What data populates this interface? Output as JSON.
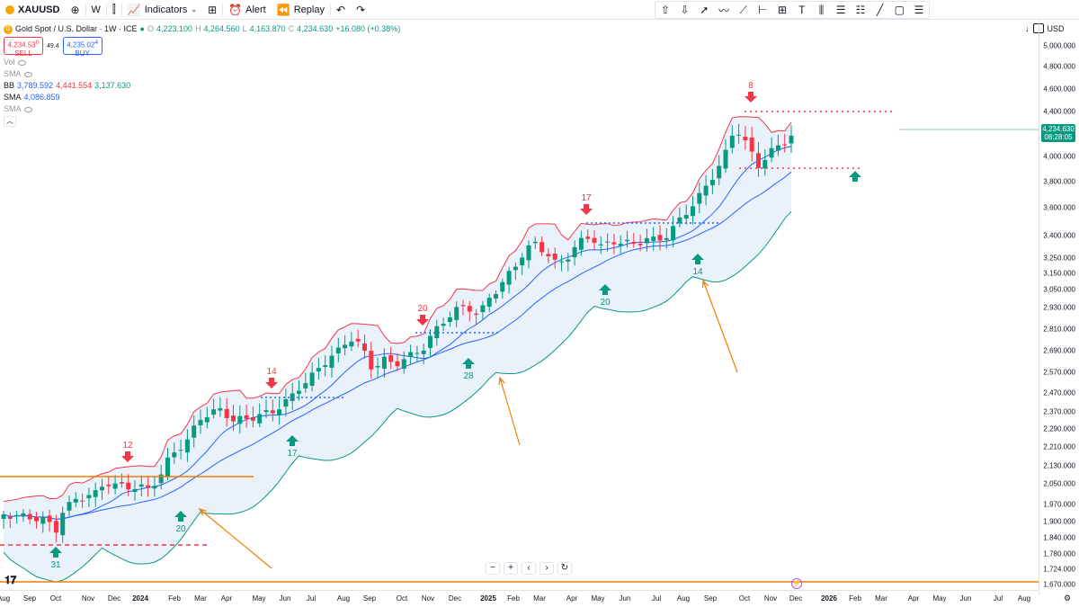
{
  "toolbar": {
    "symbol": "XAUUSD",
    "interval": "W",
    "indicators_label": "Indicators",
    "alert_label": "Alert",
    "replay_label": "Replay"
  },
  "legend": {
    "title": "Gold Spot / U.S. Dollar · 1W · ICE",
    "open_label": "O",
    "open": "4,223.100",
    "high_label": "H",
    "high": "4,264.560",
    "low_label": "L",
    "low": "4,163.870",
    "close_label": "C",
    "close": "4,234.630",
    "change": "+16.080 (+0.38%)",
    "sell_price": "4,234.53",
    "sell_sup": "0",
    "sell_label": "SELL",
    "spread": "49.4",
    "buy_price": "4,235.02",
    "buy_sup": "4",
    "buy_label": "BUY",
    "vol_label": "Vol",
    "sma1_label": "SMA",
    "bb_label": "BB",
    "bb_values": [
      "3,789.592",
      "4,441.554",
      "3,137.630"
    ],
    "sma2_label": "SMA",
    "sma2_value": "4,086.859",
    "sma3_label": "SMA"
  },
  "price_axis": {
    "currency": "USD",
    "labels": [
      "5,000.000",
      "4,800.000",
      "4,600.000",
      "4,400.000",
      "4,000.000",
      "3,800.000",
      "3,600.000",
      "3,400.000",
      "3,250.000",
      "3,150.000",
      "3,050.000",
      "2,930.000",
      "2,810.000",
      "2,690.000",
      "2,570.000",
      "2,470.000",
      "2,370.000",
      "2,290.000",
      "2,210.000",
      "2,130.000",
      "2,050.000",
      "1,970.000",
      "1,900.000",
      "1,840.000",
      "1,780.000",
      "1,724.000",
      "1,670.000"
    ],
    "current_price": "4,234.630",
    "countdown": "08:28:05"
  },
  "time_axis": {
    "labels": [
      "Aug",
      "Sep",
      "Oct",
      "Nov",
      "Dec",
      "2024",
      "Feb",
      "Mar",
      "Apr",
      "May",
      "Jun",
      "Jul",
      "Aug",
      "Sep",
      "Oct",
      "Nov",
      "Dec",
      "2025",
      "Feb",
      "Mar",
      "Apr",
      "May",
      "Jun",
      "Jul",
      "Aug",
      "Sep",
      "Oct",
      "Nov",
      "Dec",
      "2026",
      "Feb",
      "Mar",
      "Apr",
      "May",
      "Jun",
      "Jul",
      "Aug"
    ]
  },
  "annotations": {
    "down_counts": [
      "12",
      "14",
      "20",
      "17",
      "8"
    ],
    "up_counts": [
      "31",
      "20",
      "17",
      "28",
      "20",
      "14"
    ]
  },
  "colors": {
    "up": "#089981",
    "down": "#f23645",
    "band_fill": "#e3eefa",
    "bb_upper": "#f23645",
    "bb_lower": "#089981",
    "sma": "#2962ff",
    "hline": "#f57c00"
  },
  "chart_data": {
    "type": "candlestick",
    "interval": "1W",
    "symbol": "XAUUSD",
    "last": {
      "open": 4223.1,
      "high": 4264.56,
      "low": 4163.87,
      "close": 4234.63
    },
    "bollinger": {
      "basis": 3789.592,
      "upper": 4441.554,
      "lower": 3137.63
    },
    "sma": 4086.859
  }
}
